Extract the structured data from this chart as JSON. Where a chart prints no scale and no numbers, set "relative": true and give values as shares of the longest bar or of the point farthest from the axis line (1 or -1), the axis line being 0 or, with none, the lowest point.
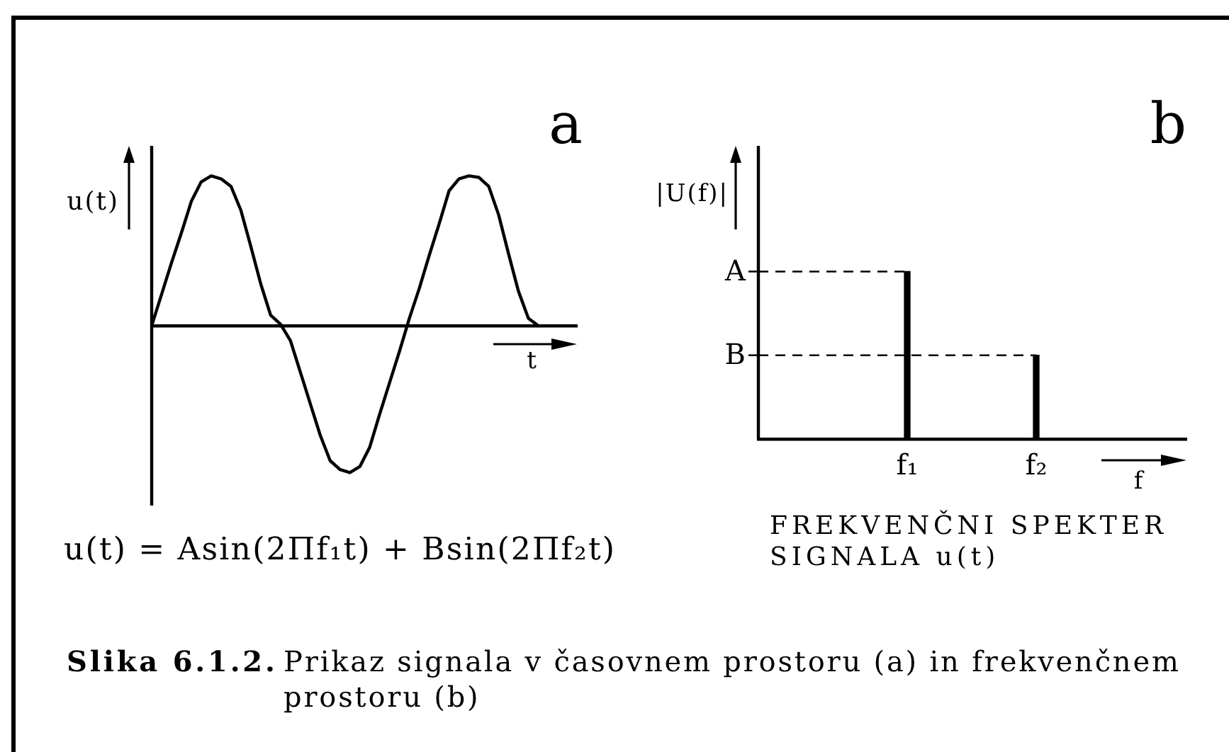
{
  "chart_data": [
    {
      "type": "line",
      "xlabel": "t",
      "ylabel": "u(t)",
      "relative": true,
      "categories": [
        null,
        null,
        null,
        null,
        null,
        null,
        null,
        null,
        null,
        null,
        null,
        null,
        null,
        null,
        null,
        null,
        null,
        null,
        null,
        null,
        null,
        null,
        null,
        null,
        null,
        null,
        null,
        null,
        null,
        null,
        null,
        null,
        null,
        null,
        null,
        null,
        null,
        null,
        null,
        null
      ],
      "series": [
        {
          "color": "#000000",
          "values": [
            0,
            0.21,
            0.42,
            0.62,
            0.83,
            0.96,
            1,
            0.98,
            0.93,
            0.77,
            0.53,
            0.28,
            0.07,
            0.01,
            -0.1,
            -0.31,
            -0.52,
            -0.73,
            -0.9,
            -0.96,
            -0.98,
            -0.94,
            -0.81,
            -0.59,
            -0.38,
            -0.17,
            0.05,
            0.25,
            0.47,
            0.68,
            0.9,
            0.98,
            1,
            0.99,
            0.93,
            0.74,
            0.48,
            0.23,
            0.05,
            0
          ]
        }
      ],
      "annotations": [
        "a",
        "u(t) = Asin(2Πf₁t) + Bsin(2Πf₂t)"
      ]
    },
    {
      "type": "bar",
      "xlabel": "f",
      "ylabel": "|U(f)|",
      "relative": true,
      "categories": [
        "f₁",
        "f₂"
      ],
      "values": [
        1,
        0.5
      ],
      "color": "#000000",
      "ref_lines": [
        {
          "axis": "y",
          "value": 1,
          "label": "A",
          "line_style": "dashed"
        },
        {
          "axis": "y",
          "value": 0.5,
          "label": "B",
          "line_style": "dashed"
        }
      ],
      "annotations": [
        "b",
        "FREKVENČNI SPEKTER SIGNALA u(t)",
        "Slika 6.1.2.",
        "Prikaz signala v časovnem prostoru (a) in frekvenčnem prostoru (b)"
      ]
    }
  ]
}
